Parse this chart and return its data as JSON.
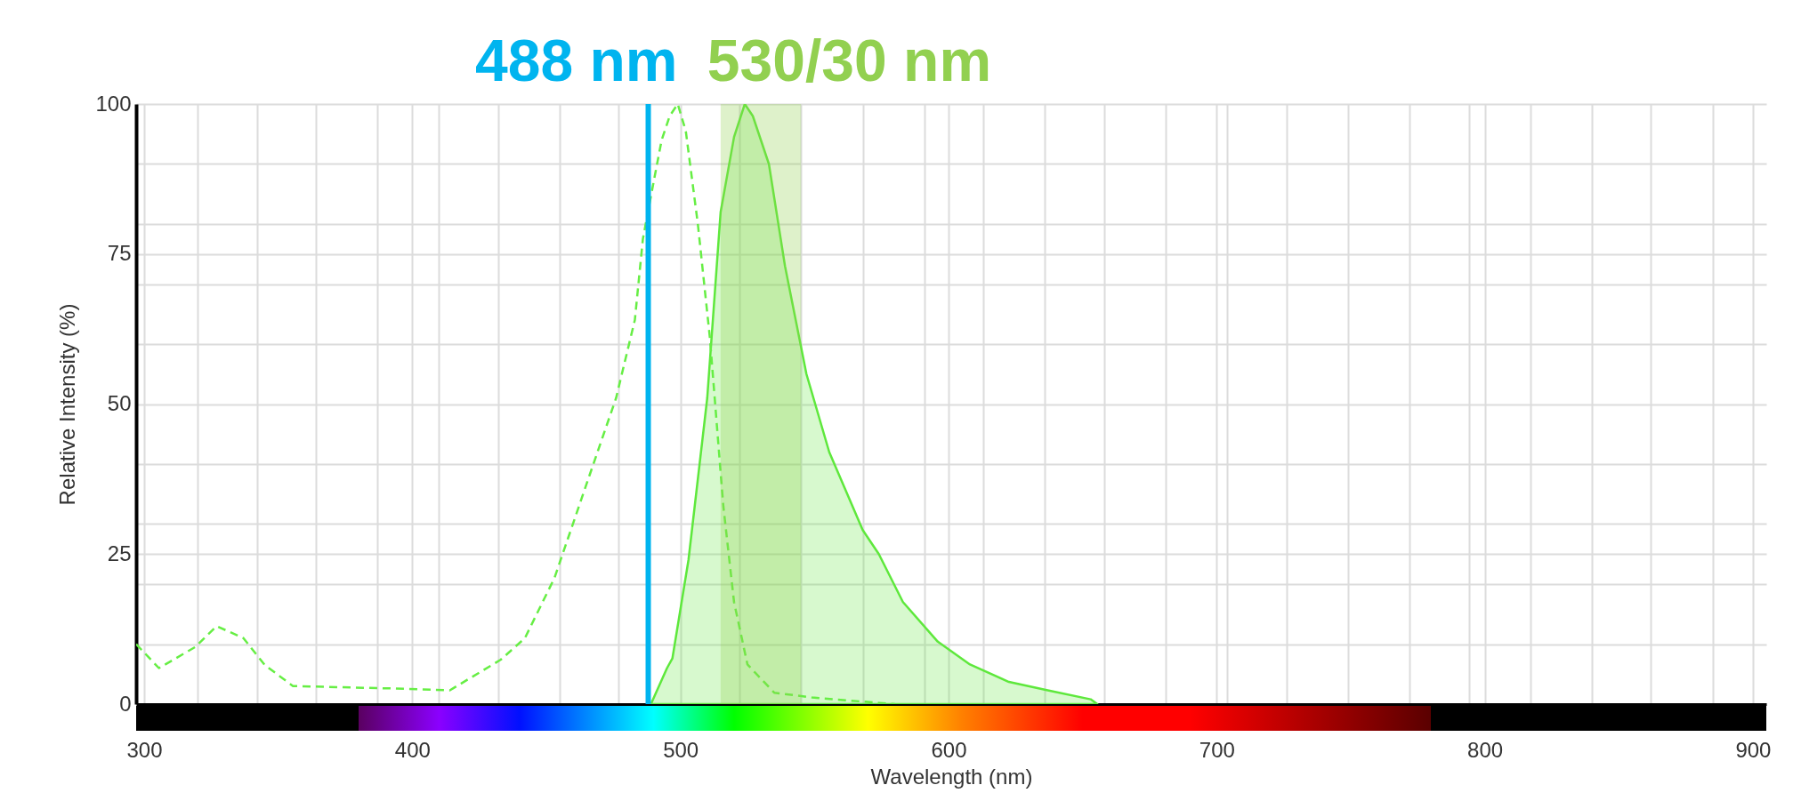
{
  "chart_data": {
    "type": "line",
    "xlabel": "Wavelength (nm)",
    "ylabel": "Relative Intensity (%)",
    "xlim": [
      297,
      905
    ],
    "ylim": [
      0,
      100
    ],
    "xticks": [
      300,
      {
        "value": 320,
        "label": null
      },
      {
        "value": 342,
        "label": null
      },
      {
        "value": 364,
        "label": null
      },
      {
        "value": 387,
        "label": null
      },
      400,
      {
        "value": 410,
        "label": null
      },
      {
        "value": 432,
        "label": null
      },
      {
        "value": 455,
        "label": null
      },
      {
        "value": 477,
        "label": null
      },
      500,
      {
        "value": 522,
        "label": null
      },
      {
        "value": 545,
        "label": null
      },
      {
        "value": 568,
        "label": null
      },
      {
        "value": 591,
        "label": null
      },
      600,
      {
        "value": 613,
        "label": null
      },
      {
        "value": 636,
        "label": null
      },
      {
        "value": 658,
        "label": null
      },
      {
        "value": 681,
        "label": null
      },
      700,
      {
        "value": 704,
        "label": null
      },
      {
        "value": 726,
        "label": null
      },
      {
        "value": 749,
        "label": null
      },
      {
        "value": 772,
        "label": null
      },
      {
        "value": 794,
        "label": null
      },
      800,
      {
        "value": 817,
        "label": null
      },
      {
        "value": 840,
        "label": null
      },
      {
        "value": 862,
        "label": null
      },
      {
        "value": 885,
        "label": null
      },
      900
    ],
    "yticks": [
      0,
      {
        "value": 10,
        "label": null
      },
      {
        "value": 20,
        "label": null
      },
      25,
      {
        "value": 30,
        "label": null
      },
      {
        "value": 40,
        "label": null
      },
      50,
      {
        "value": 60,
        "label": null
      },
      {
        "value": 70,
        "label": null
      },
      75,
      {
        "value": 80,
        "label": null
      },
      {
        "value": 90,
        "label": null
      },
      100
    ],
    "grid": true,
    "series": [
      {
        "type": "line",
        "line_style": "dashed",
        "color": "#66ee44",
        "x": [
          297,
          305.5,
          319,
          327,
          337,
          345,
          355.5,
          393,
          414,
          433,
          442,
          453,
          466,
          476,
          483,
          486,
          490,
          493,
          496,
          499,
          502,
          506.5,
          511,
          516,
          520,
          525,
          535,
          549,
          574,
          580
        ],
        "values": [
          10,
          6,
          9.5,
          13,
          11,
          6.5,
          3,
          2.6,
          2.3,
          7.4,
          11,
          21,
          38,
          51,
          64,
          77.5,
          87,
          94,
          98,
          100,
          95.5,
          80,
          61,
          33,
          17,
          6.6,
          1.9,
          1.1,
          0.2,
          0
        ]
      },
      {
        "type": "area",
        "color": "#5ee83c",
        "x": [
          489,
          495,
          497,
          503,
          510,
          515,
          520,
          524,
          527,
          533,
          539,
          547,
          555.5,
          568,
          574,
          583,
          596,
          608,
          622.5,
          637,
          653,
          655.5
        ],
        "values": [
          0,
          6,
          7.6,
          24,
          51,
          82,
          94.5,
          100,
          98,
          90,
          73,
          55,
          42,
          29,
          25,
          17,
          10.4,
          6.6,
          3.7,
          2.3,
          0.8,
          0
        ]
      }
    ],
    "ref_lines": [
      {
        "axis": "x",
        "value": 488,
        "label": "488 nm",
        "color": "#00b4ef"
      }
    ],
    "bands": [
      {
        "axis": "x",
        "from": 515,
        "to": 545,
        "label": "530/30 nm",
        "color": "#92d050"
      }
    ]
  }
}
